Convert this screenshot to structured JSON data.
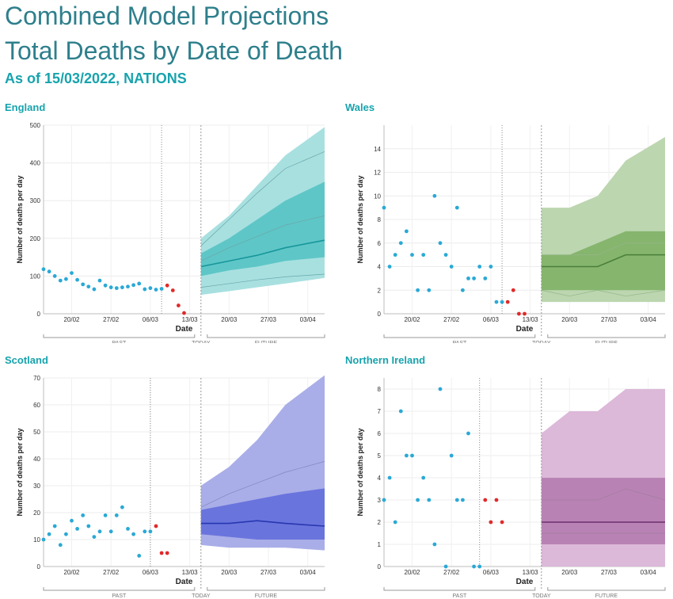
{
  "header": {
    "title_line1": "Combined Model Projections",
    "title_line2": "Total Deaths by Date of Death",
    "subtitle": "As of 15/03/2022, NATIONS"
  },
  "common": {
    "xlabel": "Date",
    "ylabel": "Number of deaths per day",
    "x_ticks": [
      "20/02",
      "27/02",
      "06/03",
      "13/03",
      "20/03",
      "27/03",
      "03/04"
    ],
    "past_label": "PAST",
    "today_label": "TODAY",
    "future_label": "FUTURE",
    "observed_color": "#2aa9d6",
    "incomplete_color": "#e02a2a"
  },
  "chart_data": [
    {
      "type": "scatter+area",
      "title": "England",
      "xlabel": "Date",
      "ylabel": "Number of deaths per day",
      "ylim": [
        0,
        500
      ],
      "y_ticks": [
        0,
        100,
        200,
        300,
        400,
        500
      ],
      "x_range": [
        "15/02",
        "06/04"
      ],
      "today": "15/03",
      "cutoff": "08/03",
      "colors": {
        "outer": "#a8e0e0",
        "inner": "#5fc6c7",
        "median": "#16979c",
        "thin": "#6aa7a8"
      },
      "observed": {
        "x": [
          "15/02",
          "16/02",
          "17/02",
          "18/02",
          "19/02",
          "20/02",
          "21/02",
          "22/02",
          "23/02",
          "24/02",
          "25/02",
          "26/02",
          "27/02",
          "28/02",
          "01/03",
          "02/03",
          "03/03",
          "04/03",
          "05/03",
          "06/03",
          "07/03",
          "08/03"
        ],
        "y": [
          118,
          112,
          100,
          88,
          92,
          108,
          90,
          78,
          72,
          65,
          88,
          75,
          70,
          68,
          70,
          72,
          76,
          80,
          65,
          68,
          64,
          66
        ]
      },
      "incomplete": {
        "x": [
          "09/03",
          "10/03",
          "11/03",
          "12/03"
        ],
        "y": [
          75,
          62,
          22,
          2
        ]
      },
      "projection": {
        "x": [
          "15/03",
          "20/03",
          "25/03",
          "30/03",
          "06/04"
        ],
        "outer_low": [
          50,
          60,
          70,
          80,
          95
        ],
        "outer_high": [
          200,
          260,
          340,
          420,
          495
        ],
        "inner_low": [
          100,
          115,
          125,
          140,
          150
        ],
        "inner_high": [
          160,
          200,
          250,
          300,
          350
        ],
        "median": [
          125,
          140,
          155,
          175,
          195
        ],
        "thin_lines": [
          [
            70,
            80,
            90,
            98,
            105
          ],
          [
            140,
            175,
            205,
            235,
            260
          ],
          [
            180,
            250,
            320,
            385,
            430
          ]
        ]
      }
    },
    {
      "type": "scatter+area",
      "title": "Wales",
      "xlabel": "Date",
      "ylabel": "Number of deaths per day",
      "ylim": [
        0,
        16
      ],
      "y_ticks": [
        0,
        2,
        4,
        6,
        8,
        10,
        12,
        14
      ],
      "x_range": [
        "15/02",
        "06/04"
      ],
      "today": "15/03",
      "cutoff": "08/03",
      "colors": {
        "outer": "#bcd6b0",
        "inner": "#86b56e",
        "median": "#4a7f3a",
        "thin": "#93b686"
      },
      "observed": {
        "x": [
          "15/02",
          "16/02",
          "17/02",
          "18/02",
          "19/02",
          "20/02",
          "21/02",
          "22/02",
          "23/02",
          "24/02",
          "25/02",
          "26/02",
          "27/02",
          "28/02",
          "01/03",
          "02/03",
          "03/03",
          "04/03",
          "05/03",
          "06/03",
          "07/03",
          "08/03"
        ],
        "y": [
          9,
          4,
          5,
          6,
          7,
          5,
          2,
          5,
          2,
          10,
          6,
          5,
          4,
          9,
          2,
          3,
          3,
          4,
          3,
          4,
          1,
          1
        ]
      },
      "incomplete": {
        "x": [
          "09/03",
          "10/03",
          "11/03",
          "12/03"
        ],
        "y": [
          1,
          2,
          0,
          0
        ]
      },
      "projection": {
        "x": [
          "15/03",
          "20/03",
          "25/03",
          "30/03",
          "06/04"
        ],
        "outer_low": [
          1,
          1,
          1,
          1,
          1
        ],
        "outer_high": [
          9,
          9,
          10,
          13,
          15
        ],
        "inner_low": [
          2,
          2,
          2,
          2,
          2
        ],
        "inner_high": [
          5,
          5,
          6,
          7,
          7
        ],
        "median": [
          4,
          4,
          4,
          5,
          5
        ],
        "thin_lines": [
          [
            2,
            1.5,
            2,
            1.5,
            2
          ],
          [
            5,
            5,
            5,
            6,
            6
          ]
        ]
      }
    },
    {
      "type": "scatter+area",
      "title": "Scotland",
      "xlabel": "Date",
      "ylabel": "Number of deaths per day",
      "ylim": [
        0,
        70
      ],
      "y_ticks": [
        0,
        10,
        20,
        30,
        40,
        50,
        60,
        70
      ],
      "x_range": [
        "15/02",
        "06/04"
      ],
      "today": "15/03",
      "cutoff": "06/03",
      "colors": {
        "outer": "#a9aee8",
        "inner": "#6a74dd",
        "median": "#2638b0",
        "thin": "#8087c4"
      },
      "observed": {
        "x": [
          "15/02",
          "16/02",
          "17/02",
          "18/02",
          "19/02",
          "20/02",
          "21/02",
          "22/02",
          "23/02",
          "24/02",
          "25/02",
          "26/02",
          "27/02",
          "28/02",
          "01/03",
          "02/03",
          "03/03",
          "04/03",
          "05/03",
          "06/03"
        ],
        "y": [
          10,
          12,
          15,
          8,
          12,
          17,
          14,
          19,
          15,
          11,
          13,
          19,
          13,
          19,
          22,
          14,
          12,
          4,
          13,
          13
        ]
      },
      "incomplete": {
        "x": [
          "07/03",
          "08/03",
          "09/03"
        ],
        "y": [
          15,
          5,
          5
        ]
      },
      "projection": {
        "x": [
          "15/03",
          "20/03",
          "25/03",
          "30/03",
          "06/04"
        ],
        "outer_low": [
          8,
          7,
          7,
          7,
          6
        ],
        "outer_high": [
          30,
          37,
          47,
          60,
          71
        ],
        "inner_low": [
          12,
          11,
          10,
          10,
          10
        ],
        "inner_high": [
          21,
          23,
          25,
          27,
          29
        ],
        "median": [
          16,
          16,
          17,
          16,
          15
        ],
        "thin_lines": [
          [
            22,
            27,
            31,
            35,
            39
          ]
        ]
      }
    },
    {
      "type": "scatter+area",
      "title": "Northern Ireland",
      "xlabel": "Date",
      "ylabel": "Number of deaths per day",
      "ylim": [
        0,
        8.5
      ],
      "y_ticks": [
        0,
        1,
        2,
        3,
        4,
        5,
        6,
        7,
        8
      ],
      "x_range": [
        "15/02",
        "06/04"
      ],
      "today": "15/03",
      "cutoff": "04/03",
      "colors": {
        "outer": "#dcb8d9",
        "inner": "#b883b4",
        "median": "#6e2f6d",
        "thin": "#a37ca0"
      },
      "observed": {
        "x": [
          "15/02",
          "16/02",
          "17/02",
          "18/02",
          "19/02",
          "20/02",
          "21/02",
          "22/02",
          "23/02",
          "24/02",
          "25/02",
          "26/02",
          "27/02",
          "28/02",
          "01/03",
          "02/03",
          "03/03",
          "04/03"
        ],
        "y": [
          3,
          4,
          2,
          7,
          5,
          5,
          3,
          4,
          3,
          1,
          8,
          0,
          5,
          3,
          3,
          6,
          0,
          0
        ]
      },
      "incomplete": {
        "x": [
          "05/03",
          "06/03",
          "07/03",
          "08/03"
        ],
        "y": [
          3,
          2,
          3,
          2
        ]
      },
      "projection": {
        "x": [
          "15/03",
          "20/03",
          "25/03",
          "30/03",
          "06/04"
        ],
        "outer_low": [
          0,
          0,
          0,
          0,
          0
        ],
        "outer_high": [
          6,
          7,
          7,
          8,
          8
        ],
        "inner_low": [
          1,
          1,
          1,
          1,
          1
        ],
        "inner_high": [
          4,
          4,
          4,
          4,
          4
        ],
        "median": [
          2,
          2,
          2,
          2,
          2
        ],
        "thin_lines": [
          [
            3,
            3,
            3,
            3.5,
            3
          ],
          [
            1.5,
            1.5,
            1.5,
            1.5,
            1.5
          ]
        ]
      }
    }
  ]
}
